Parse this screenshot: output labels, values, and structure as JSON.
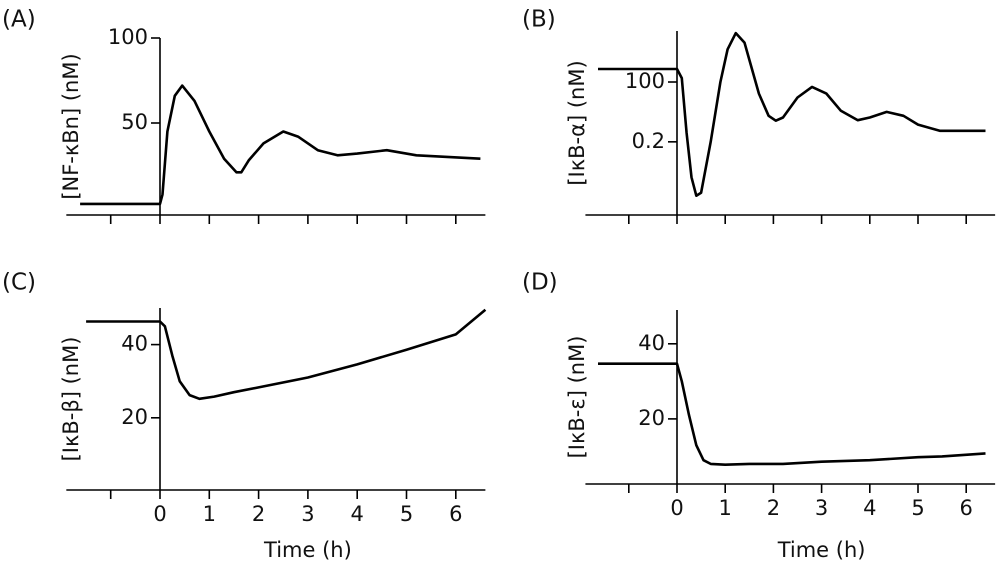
{
  "chart_data": [
    {
      "type": "line",
      "label": "(A)",
      "ylabel": "[NF-κBn] (nM)",
      "x": [
        -1.62,
        -0.5,
        0,
        0.05,
        0.15,
        0.3,
        0.45,
        0.7,
        1.0,
        1.3,
        1.55,
        1.65,
        1.8,
        2.1,
        2.5,
        2.8,
        3.2,
        3.6,
        4.0,
        4.6,
        5.2,
        6.5
      ],
      "series": [
        {
          "color": "#000000",
          "values": [
            2.4,
            2.4,
            2.4,
            8,
            45,
            66,
            72,
            63,
            45,
            29,
            21,
            21,
            28,
            38,
            45,
            42,
            34,
            31,
            32,
            34,
            31,
            29
          ]
        }
      ],
      "xlim": [
        -1.9,
        6.6
      ],
      "ylim": [
        0,
        100
      ],
      "yticks": [
        50,
        100
      ],
      "xticks_unlabeled": [
        -1,
        0,
        1,
        2,
        3,
        4,
        5,
        6
      ]
    },
    {
      "type": "line",
      "label": "(B)",
      "ylabel": "[IκB-α] (nM)",
      "yscale": "log",
      "x": [
        -1.64,
        0,
        0.1,
        0.2,
        0.3,
        0.4,
        0.5,
        0.7,
        0.9,
        1.05,
        1.22,
        1.4,
        1.7,
        1.9,
        2.05,
        2.2,
        2.5,
        2.8,
        3.1,
        3.4,
        3.75,
        4.0,
        4.35,
        4.7,
        5.0,
        5.45,
        6.4
      ],
      "series": [
        {
          "color": "#000000",
          "values": [
            385,
            385,
            150,
            0.5,
            0.005,
            0.00074,
            0.001,
            0.2,
            100,
            3000,
            16000,
            6000,
            30,
            3,
            1.8,
            2.5,
            20,
            60,
            30,
            5,
            1.9,
            2.5,
            4.5,
            3,
            1.2,
            0.63,
            0.63
          ]
        }
      ],
      "xlim": [
        -1.9,
        6.6
      ],
      "ylim": [
        0.0001,
        20000
      ],
      "yticks": [
        {
          "value": 0.2,
          "label": "0.2"
        },
        100
      ],
      "xticks_unlabeled": [
        -1,
        0,
        1,
        2,
        3,
        4,
        5,
        6
      ]
    },
    {
      "type": "line",
      "label": "(C)",
      "ylabel": "[IκB-β] (nM)",
      "xlabel": "Time (h)",
      "x": [
        -1.5,
        0,
        0.1,
        0.25,
        0.4,
        0.6,
        0.8,
        1.1,
        1.5,
        2,
        3,
        4,
        5,
        6,
        6.6
      ],
      "series": [
        {
          "color": "#000000",
          "values": [
            46.3,
            46.3,
            45,
            37,
            30,
            26.2,
            25.2,
            25.8,
            27,
            28.3,
            31,
            34.6,
            38.6,
            42.8,
            49.5
          ]
        }
      ],
      "xlim": [
        -1.9,
        6.6
      ],
      "ylim": [
        0,
        50
      ],
      "yticks": [
        20,
        40
      ],
      "xticks": [
        0,
        1,
        2,
        3,
        4,
        5,
        6
      ],
      "xticks_unlabeled": [
        -1
      ]
    },
    {
      "type": "line",
      "label": "(D)",
      "ylabel": "[IκB-ε] (nM)",
      "xlabel": "Time (h)",
      "x": [
        -1.64,
        0,
        0.1,
        0.25,
        0.4,
        0.55,
        0.7,
        1.0,
        1.5,
        2.2,
        2.6,
        3.0,
        4.0,
        5.0,
        5.5,
        6.4
      ],
      "series": [
        {
          "color": "#000000",
          "values": [
            34.7,
            34.7,
            30,
            21,
            13,
            9,
            8,
            7.8,
            8,
            8,
            8.3,
            8.6,
            9,
            9.8,
            10,
            10.8
          ]
        }
      ],
      "xlim": [
        -1.9,
        6.6
      ],
      "ylim": [
        2.5,
        49
      ],
      "yticks": [
        20,
        40
      ],
      "xticks": [
        0,
        1,
        2,
        3,
        4,
        5,
        6
      ],
      "xticks_unlabeled": [
        -1
      ]
    }
  ]
}
